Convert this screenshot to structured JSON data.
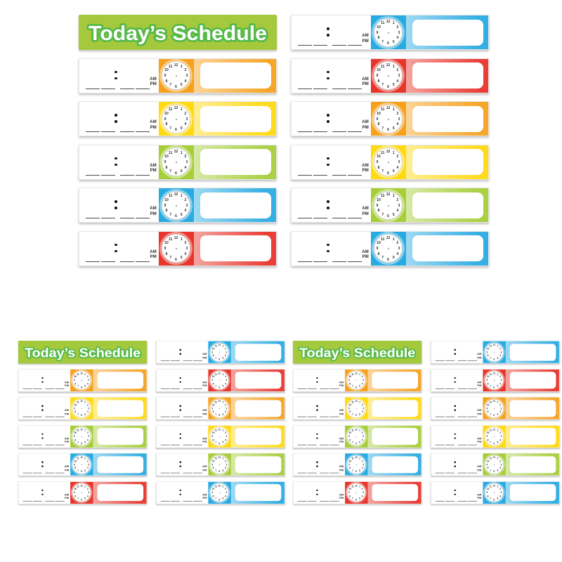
{
  "page": {
    "background": "#FFFFFF"
  },
  "banner": {
    "title": "Today’s Schedule",
    "bg": "#A5C93D",
    "text_fill": "#FFFFFF",
    "text_outline": "#55B948"
  },
  "strip": {
    "am_label": "AM",
    "pm_label": "PM",
    "clock_numbers": [
      "12",
      "1",
      "2",
      "3",
      "4",
      "5",
      "6",
      "7",
      "8",
      "9",
      "10",
      "11"
    ]
  },
  "palette": {
    "orange": "#F6A11E",
    "yellow": "#FFD912",
    "green": "#A6CE39",
    "blue": "#29ABE2",
    "red": "#E8352C"
  },
  "layout": {
    "left_rows": [
      "orange",
      "yellow",
      "green",
      "blue",
      "red"
    ],
    "right_rows": [
      "blue",
      "red",
      "orange",
      "yellow",
      "green",
      "blue"
    ],
    "sets": [
      {
        "id": "large"
      },
      {
        "id": "small-left"
      },
      {
        "id": "small-right"
      }
    ]
  }
}
